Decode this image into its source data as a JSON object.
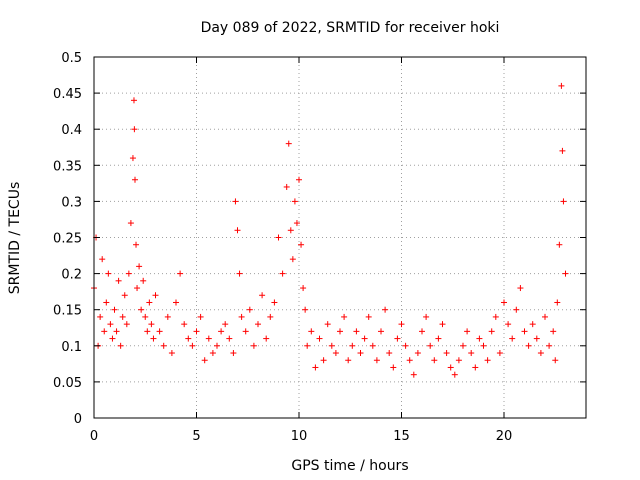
{
  "chart_data": {
    "type": "scatter",
    "title": "Day 089 of 2022, SRMTID for receiver hoki",
    "xlabel": "GPS time / hours",
    "ylabel": "SRMTID / TECUs",
    "xlim": [
      0,
      24
    ],
    "ylim": [
      0,
      0.5
    ],
    "xticks": [
      0,
      5,
      10,
      15,
      20
    ],
    "yticks": [
      0,
      0.05,
      0.1,
      0.15,
      0.2,
      0.25,
      0.3,
      0.35,
      0.4,
      0.45,
      0.5
    ],
    "xtick_labels": [
      "0",
      "5",
      "10",
      "15",
      "20"
    ],
    "ytick_labels": [
      "0",
      "0.05",
      "0.1",
      "0.15",
      "0.2",
      "0.25",
      "0.3",
      "0.35",
      "0.4",
      "0.45",
      "0.5"
    ],
    "grid": true,
    "marker": "plus",
    "color": "#ff0000",
    "series": [
      {
        "x": [
          0.0,
          0.1,
          0.2,
          0.3,
          0.4,
          0.5,
          0.6,
          0.7,
          0.8,
          0.9,
          1.0,
          1.1,
          1.2,
          1.3,
          1.4,
          1.5,
          1.6,
          1.7,
          1.8,
          1.9,
          1.95,
          1.97,
          2.0,
          2.05,
          2.1,
          2.2,
          2.3,
          2.4,
          2.5,
          2.6,
          2.7,
          2.8,
          2.9,
          3.0,
          3.2,
          3.4,
          3.6,
          3.8,
          4.0,
          4.2,
          4.4,
          4.6,
          4.8,
          5.0,
          5.2,
          5.4,
          5.6,
          5.8,
          6.0,
          6.2,
          6.4,
          6.6,
          6.8,
          6.9,
          7.0,
          7.1,
          7.2,
          7.4,
          7.6,
          7.8,
          8.0,
          8.2,
          8.4,
          8.6,
          8.8,
          9.0,
          9.2,
          9.4,
          9.5,
          9.6,
          9.7,
          9.8,
          9.9,
          10.0,
          10.1,
          10.2,
          10.3,
          10.4,
          10.6,
          10.8,
          11.0,
          11.2,
          11.4,
          11.6,
          11.8,
          12.0,
          12.2,
          12.4,
          12.6,
          12.8,
          13.0,
          13.2,
          13.4,
          13.6,
          13.8,
          14.0,
          14.2,
          14.4,
          14.6,
          14.8,
          15.0,
          15.2,
          15.4,
          15.6,
          15.8,
          16.0,
          16.2,
          16.4,
          16.6,
          16.8,
          17.0,
          17.2,
          17.4,
          17.6,
          17.8,
          18.0,
          18.2,
          18.4,
          18.6,
          18.8,
          19.0,
          19.2,
          19.4,
          19.6,
          19.8,
          20.0,
          20.2,
          20.4,
          20.6,
          20.8,
          21.0,
          21.2,
          21.4,
          21.6,
          21.8,
          22.0,
          22.2,
          22.4,
          22.5,
          22.6,
          22.7,
          22.8,
          22.85,
          22.9,
          23.0
        ],
        "y": [
          0.18,
          0.25,
          0.1,
          0.14,
          0.22,
          0.12,
          0.16,
          0.2,
          0.13,
          0.11,
          0.15,
          0.12,
          0.19,
          0.1,
          0.14,
          0.17,
          0.13,
          0.2,
          0.27,
          0.36,
          0.44,
          0.4,
          0.33,
          0.24,
          0.18,
          0.21,
          0.15,
          0.19,
          0.14,
          0.12,
          0.16,
          0.13,
          0.11,
          0.17,
          0.12,
          0.1,
          0.14,
          0.09,
          0.16,
          0.2,
          0.13,
          0.11,
          0.1,
          0.12,
          0.14,
          0.08,
          0.11,
          0.09,
          0.1,
          0.12,
          0.13,
          0.11,
          0.09,
          0.3,
          0.26,
          0.2,
          0.14,
          0.12,
          0.15,
          0.1,
          0.13,
          0.17,
          0.11,
          0.14,
          0.16,
          0.25,
          0.2,
          0.32,
          0.38,
          0.26,
          0.22,
          0.3,
          0.27,
          0.33,
          0.24,
          0.18,
          0.15,
          0.1,
          0.12,
          0.07,
          0.11,
          0.08,
          0.13,
          0.1,
          0.09,
          0.12,
          0.14,
          0.08,
          0.1,
          0.12,
          0.09,
          0.11,
          0.14,
          0.1,
          0.08,
          0.12,
          0.15,
          0.09,
          0.07,
          0.11,
          0.13,
          0.1,
          0.08,
          0.06,
          0.09,
          0.12,
          0.14,
          0.1,
          0.08,
          0.11,
          0.13,
          0.09,
          0.07,
          0.06,
          0.08,
          0.1,
          0.12,
          0.09,
          0.07,
          0.11,
          0.1,
          0.08,
          0.12,
          0.14,
          0.09,
          0.16,
          0.13,
          0.11,
          0.15,
          0.18,
          0.12,
          0.1,
          0.13,
          0.11,
          0.09,
          0.14,
          0.1,
          0.12,
          0.08,
          0.16,
          0.24,
          0.46,
          0.37,
          0.3,
          0.2
        ]
      }
    ]
  }
}
